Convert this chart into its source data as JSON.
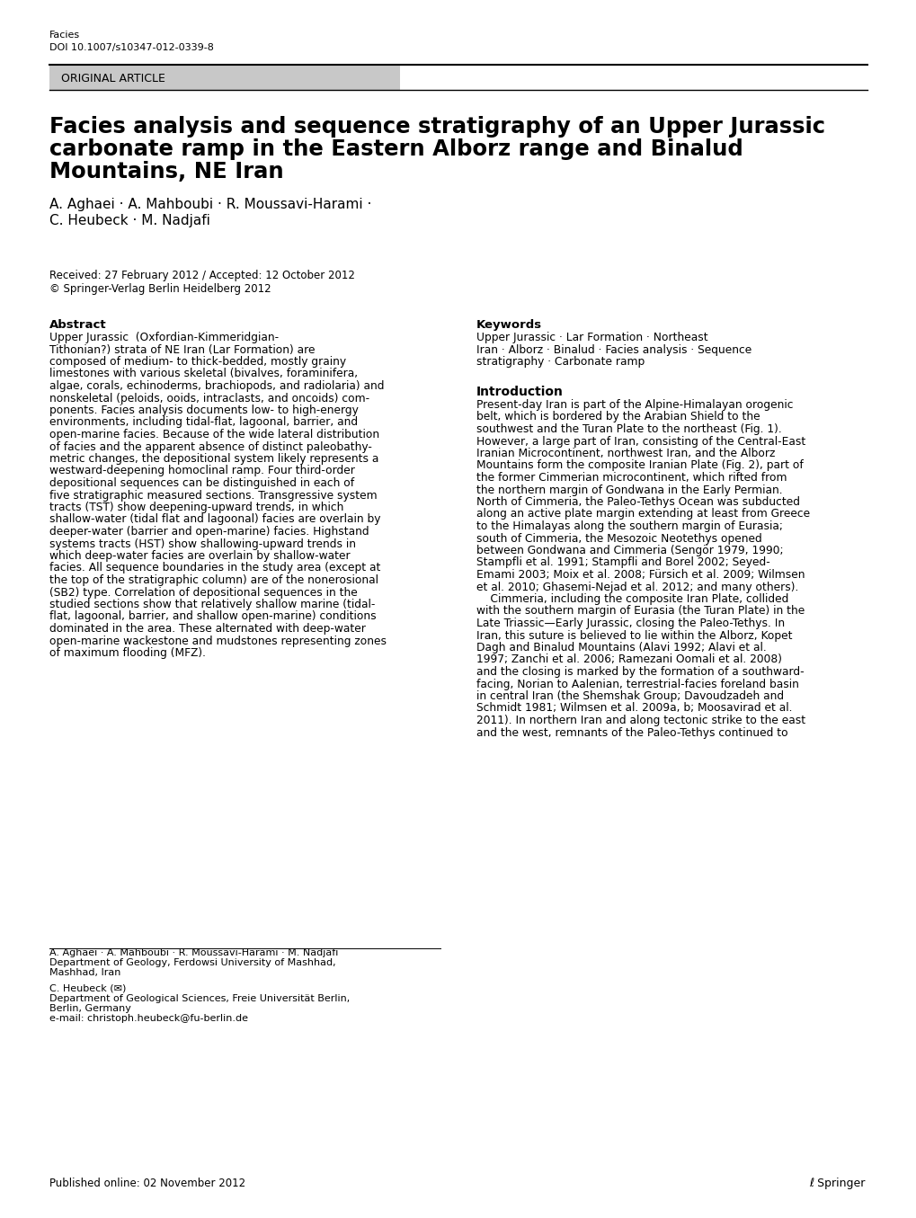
{
  "page_bg": "#ffffff",
  "journal_name": "Facies",
  "doi": "DOI 10.1007/s10347-012-0339-8",
  "article_type": "ORIGINAL ARTICLE",
  "article_type_bg": "#c8c8c8",
  "title_line1": "Facies analysis and sequence stratigraphy of an Upper Jurassic",
  "title_line2": "carbonate ramp in the Eastern Alborz range and Binalud",
  "title_line3": "Mountains, NE Iran",
  "authors_line1": "A. Aghaei · A. Mahboubi · R. Moussavi-Harami ·",
  "authors_line2": "C. Heubeck · M. Nadjafi",
  "received": "Received: 27 February 2012 / Accepted: 12 October 2012",
  "copyright": "© Springer-Verlag Berlin Heidelberg 2012",
  "abstract_label": "Abstract",
  "keywords_label": "Keywords",
  "intro_label": "Introduction",
  "affil1": "A. Aghaei · A. Mahboubi · R. Moussavi-Harami · M. Nadjafi",
  "affil1_dept": "Department of Geology, Ferdowsi University of Mashhad,",
  "affil1_city": "Mashhad, Iran",
  "affil2_name": "C. Heubeck (✉)",
  "affil2_dept": "Department of Geological Sciences, Freie Universität Berlin,",
  "affil2_city": "Berlin, Germany",
  "affil2_email": "e-mail: christoph.heubeck@fu-berlin.de",
  "published": "Published online: 02 November 2012",
  "springer_text": "ℓ Springer",
  "abstract_lines": [
    "Upper Jurassic  (Oxfordian-Kimmeridgian-",
    "Tithonian?) strata of NE Iran (Lar Formation) are",
    "composed of medium- to thick-bedded, mostly grainy",
    "limestones with various skeletal (bivalves, foraminifera,",
    "algae, corals, echinoderms, brachiopods, and radiolaria) and",
    "nonskeletal (peloids, ooids, intraclasts, and oncoids) com-",
    "ponents. Facies analysis documents low- to high-energy",
    "environments, including tidal-flat, lagoonal, barrier, and",
    "open-marine facies. Because of the wide lateral distribution",
    "of facies and the apparent absence of distinct paleobathy-",
    "metric changes, the depositional system likely represents a",
    "westward-deepening homoclinal ramp. Four third-order",
    "depositional sequences can be distinguished in each of",
    "five stratigraphic measured sections. Transgressive system",
    "tracts (TST) show deepening-upward trends, in which",
    "shallow-water (tidal flat and lagoonal) facies are overlain by",
    "deeper-water (barrier and open-marine) facies. Highstand",
    "systems tracts (HST) show shallowing-upward trends in",
    "which deep-water facies are overlain by shallow-water",
    "facies. All sequence boundaries in the study area (except at",
    "the top of the stratigraphic column) are of the nonerosional",
    "(SB2) type. Correlation of depositional sequences in the",
    "studied sections show that relatively shallow marine (tidal-",
    "flat, lagoonal, barrier, and shallow open-marine) conditions",
    "dominated in the area. These alternated with deep-water",
    "open-marine wackestone and mudstones representing zones",
    "of maximum flooding (MFZ)."
  ],
  "kw_lines": [
    "Upper Jurassic · Lar Formation · Northeast",
    "Iran · Alborz · Binalud · Facies analysis · Sequence",
    "stratigraphy · Carbonate ramp"
  ],
  "intro_lines": [
    "Present-day Iran is part of the Alpine-Himalayan orogenic",
    "belt, which is bordered by the Arabian Shield to the",
    "southwest and the Turan Plate to the northeast (Fig. 1).",
    "However, a large part of Iran, consisting of the Central-East",
    "Iranian Microcontinent, northwest Iran, and the Alborz",
    "Mountains form the composite Iranian Plate (Fig. 2), part of",
    "the former Cimmerian microcontinent, which rifted from",
    "the northern margin of Gondwana in the Early Permian.",
    "North of Cimmeria, the Paleo-Tethys Ocean was subducted",
    "along an active plate margin extending at least from Greece",
    "to the Himalayas along the southern margin of Eurasia;",
    "south of Cimmeria, the Mesozoic Neotethys opened",
    "between Gondwana and Cimmeria (Sengör 1979, 1990;",
    "Stampfli et al. 1991; Stampfli and Borel 2002; Seyed-",
    "Emami 2003; Moix et al. 2008; Fürsich et al. 2009; Wilmsen",
    "et al. 2010; Ghasemi-Nejad et al. 2012; and many others).",
    "    Cimmeria, including the composite Iran Plate, collided",
    "with the southern margin of Eurasia (the Turan Plate) in the",
    "Late Triassic—Early Jurassic, closing the Paleo-Tethys. In",
    "Iran, this suture is believed to lie within the Alborz, Kopet",
    "Dagh and Binalud Mountains (Alavi 1992; Alavi et al.",
    "1997; Zanchi et al. 2006; Ramezani Oomali et al. 2008)",
    "and the closing is marked by the formation of a southward-",
    "facing, Norian to Aalenian, terrestrial-facies foreland basin",
    "in central Iran (the Shemshak Group; Davoudzadeh and",
    "Schmidt 1981; Wilmsen et al. 2009a, b; Moosavirad et al.",
    "2011). In northern Iran and along tectonic strike to the east",
    "and the west, remnants of the Paleo-Tethys continued to"
  ]
}
